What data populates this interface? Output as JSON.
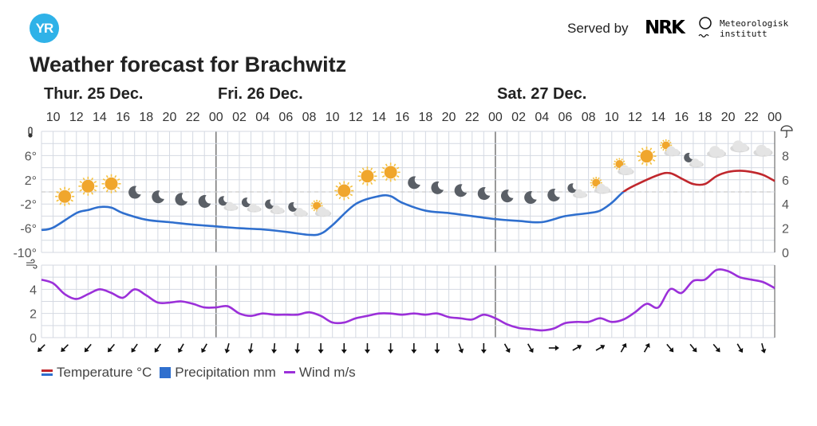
{
  "header": {
    "logo_text": "YR",
    "served_by": "Served by",
    "nrk_logo": "NRK",
    "met_line1": "Meteorologisk",
    "met_line2": "institutt",
    "title": "Weather forecast for Brachwitz"
  },
  "days": [
    "Thur. 25 Dec.",
    "Fri. 26 Dec.",
    "Sat. 27 Dec."
  ],
  "legend": {
    "temperature": "Temperature °C",
    "precipitation": "Precipitation mm",
    "wind": "Wind m/s"
  },
  "colors": {
    "temp_warm": "#c0272d",
    "temp_cold": "#2f6fce",
    "wind": "#9b30d9",
    "grid": "#d4d9e2",
    "logo": "#2fb2e8"
  },
  "chart_data": {
    "type": "line",
    "x_unit": "hours since Thu 25 Dec 00:00",
    "x_range": [
      9,
      72
    ],
    "hour_ticks": [
      "10",
      "12",
      "14",
      "16",
      "18",
      "20",
      "22",
      "00",
      "02",
      "04",
      "06",
      "08",
      "10",
      "12",
      "14",
      "16",
      "18",
      "20",
      "22",
      "00",
      "02",
      "04",
      "06",
      "08",
      "10",
      "12",
      "14",
      "16",
      "18",
      "20",
      "22",
      "00"
    ],
    "temperature": {
      "ylabel": "°C",
      "ylim": [
        -10,
        10
      ],
      "yticks": [
        "6°",
        "2°",
        "-2°",
        "-6°",
        "-10°"
      ],
      "hours": [
        9,
        10,
        12,
        13,
        14,
        15,
        16,
        18,
        20,
        22,
        24,
        26,
        28,
        30,
        32,
        33,
        34,
        36,
        38,
        39,
        40,
        42,
        44,
        46,
        48,
        50,
        52,
        54,
        56,
        57,
        58,
        59,
        60,
        62,
        63,
        64,
        65,
        66,
        67,
        68,
        69,
        70,
        71,
        72
      ],
      "values": [
        -6.3,
        -5.9,
        -3.5,
        -3.0,
        -2.5,
        -2.6,
        -3.5,
        -4.6,
        -5.0,
        -5.4,
        -5.7,
        -6.0,
        -6.2,
        -6.6,
        -7.1,
        -6.9,
        -5.5,
        -2.0,
        -0.7,
        -0.7,
        -1.8,
        -3.1,
        -3.5,
        -4.0,
        -4.5,
        -4.8,
        -5.0,
        -4.0,
        -3.5,
        -3.1,
        -1.8,
        0.0,
        1.1,
        2.8,
        3.1,
        2.2,
        1.3,
        1.3,
        2.6,
        3.3,
        3.5,
        3.3,
        2.8,
        1.8
      ]
    },
    "precipitation": {
      "ylabel": "mm",
      "ylim": [
        0,
        10
      ],
      "yticks": [
        "8",
        "6",
        "4",
        "2",
        "0"
      ],
      "values": []
    },
    "wind": {
      "ylabel": "m/s",
      "ylim": [
        0,
        6
      ],
      "yticks": [
        "4",
        "2",
        "0"
      ],
      "hours": [
        9,
        10,
        11,
        12,
        13,
        14,
        15,
        16,
        17,
        18,
        19,
        20,
        21,
        22,
        23,
        24,
        25,
        26,
        27,
        28,
        29,
        30,
        31,
        32,
        33,
        34,
        35,
        36,
        37,
        38,
        39,
        40,
        41,
        42,
        43,
        44,
        45,
        46,
        47,
        48,
        49,
        50,
        51,
        52,
        53,
        54,
        55,
        56,
        57,
        58,
        59,
        60,
        61,
        62,
        63,
        64,
        65,
        66,
        67,
        68,
        69,
        70,
        71,
        72
      ],
      "values": [
        4.8,
        4.5,
        3.6,
        3.2,
        3.6,
        4.0,
        3.7,
        3.3,
        4.0,
        3.5,
        2.9,
        2.9,
        3.0,
        2.8,
        2.5,
        2.5,
        2.6,
        2.0,
        1.8,
        2.0,
        1.9,
        1.9,
        1.9,
        2.1,
        1.8,
        1.25,
        1.25,
        1.6,
        1.8,
        2.0,
        2.0,
        1.9,
        2.0,
        1.9,
        2.0,
        1.7,
        1.6,
        1.5,
        1.9,
        1.6,
        1.1,
        0.8,
        0.7,
        0.6,
        0.75,
        1.2,
        1.3,
        1.3,
        1.6,
        1.3,
        1.5,
        2.1,
        2.8,
        2.5,
        4.0,
        3.7,
        4.7,
        4.8,
        5.6,
        5.5,
        5.0,
        4.8,
        4.6,
        4.1
      ]
    },
    "wind_direction": {
      "hours": [
        9,
        11,
        13,
        15,
        17,
        19,
        21,
        23,
        25,
        27,
        29,
        31,
        33,
        35,
        37,
        39,
        41,
        43,
        45,
        47,
        49,
        51,
        53,
        55,
        57,
        59,
        61,
        63,
        65,
        67,
        69,
        71
      ],
      "arrow_rotation_deg": [
        45,
        45,
        40,
        40,
        35,
        35,
        30,
        30,
        15,
        10,
        5,
        5,
        0,
        0,
        0,
        0,
        0,
        0,
        -20,
        0,
        -30,
        -30,
        -90,
        -120,
        -120,
        -150,
        -150,
        -40,
        -40,
        -40,
        -30,
        -15
      ]
    },
    "weather_symbols": {
      "hours": [
        11,
        13,
        15,
        17,
        19,
        21,
        23,
        25,
        27,
        29,
        31,
        33,
        35,
        37,
        39,
        41,
        43,
        45,
        47,
        49,
        51,
        53,
        55,
        57,
        59,
        61,
        63,
        65,
        67,
        69,
        71
      ],
      "symbols": [
        "sun",
        "sun",
        "sun",
        "moon",
        "moon",
        "moon",
        "moon",
        "moon-cloud",
        "moon-cloud",
        "moon-cloud",
        "moon-cloud",
        "sun-cloud",
        "sun",
        "sun",
        "sun",
        "moon",
        "moon",
        "moon",
        "moon",
        "moon",
        "moon",
        "moon",
        "moon-cloud",
        "sun-cloud",
        "sun-cloud",
        "sun",
        "sun-cloud",
        "moon-cloud",
        "cloud",
        "cloud",
        "cloud"
      ]
    },
    "day_dividers_hours": [
      24,
      48
    ],
    "grid": true,
    "legend_position": "bottom-left"
  }
}
